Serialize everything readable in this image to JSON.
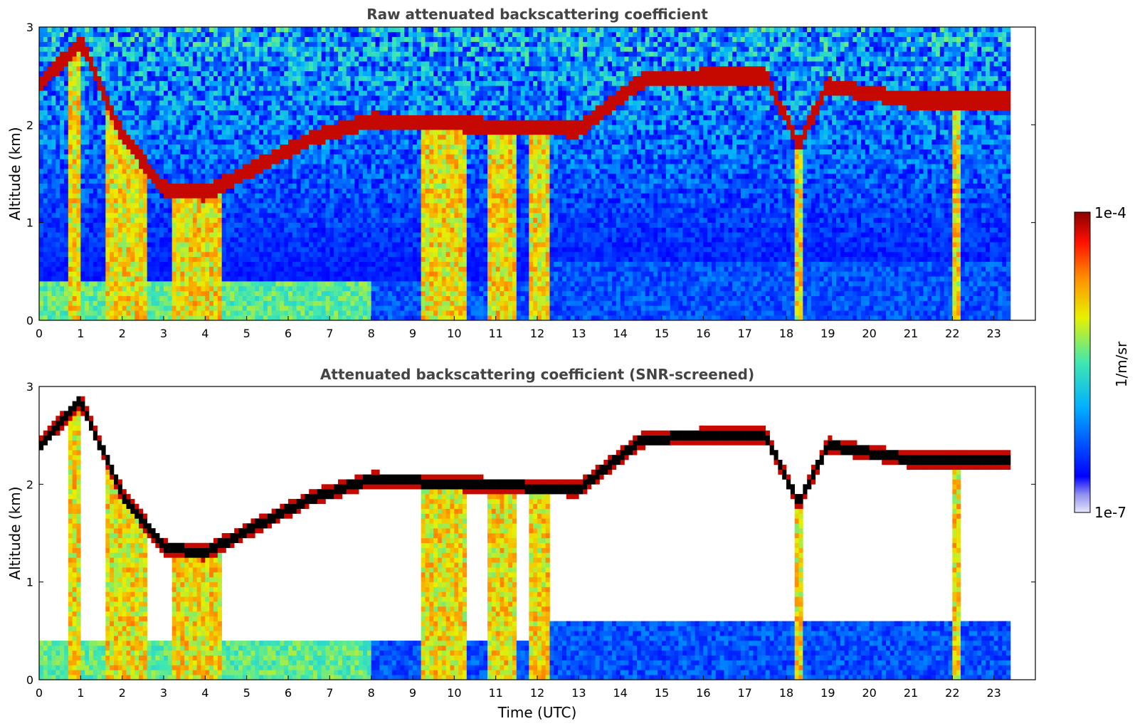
{
  "chart_data": [
    {
      "type": "heatmap",
      "title": "Raw attenuated backscattering coefficient",
      "xlabel": "",
      "ylabel": "Altitude (km)",
      "xlim": [
        0,
        24
      ],
      "ylim": [
        0,
        3
      ],
      "x_ticks": [
        "0",
        "1",
        "2",
        "3",
        "4",
        "5",
        "6",
        "7",
        "8",
        "9",
        "10",
        "11",
        "12",
        "13",
        "14",
        "15",
        "16",
        "17",
        "18",
        "19",
        "20",
        "21",
        "22",
        "23"
      ],
      "y_ticks": [
        "0",
        "1",
        "2",
        "3"
      ],
      "data_end_hour": 23.4,
      "cloud_layers": [
        {
          "t": 0.0,
          "h": 2.4
        },
        {
          "t": 1.0,
          "h": 2.85
        },
        {
          "t": 2.0,
          "h": 1.9
        },
        {
          "t": 3.0,
          "h": 1.35
        },
        {
          "t": 4.0,
          "h": 1.3
        },
        {
          "t": 6.5,
          "h": 1.85
        },
        {
          "t": 8.0,
          "h": 2.05
        },
        {
          "t": 13.0,
          "h": 1.95
        },
        {
          "t": 14.5,
          "h": 2.45
        },
        {
          "t": 16.0,
          "h": 2.5
        },
        {
          "t": 17.5,
          "h": 2.5
        },
        {
          "t": 18.3,
          "h": 1.8
        },
        {
          "t": 19.0,
          "h": 2.4
        },
        {
          "t": 21.0,
          "h": 2.25
        },
        {
          "t": 23.0,
          "h": 2.25
        }
      ]
    },
    {
      "type": "heatmap",
      "title": "Attenuated backscattering coefficient (SNR-screened)",
      "xlabel": "Time (UTC)",
      "ylabel": "Altitude (km)",
      "xlim": [
        0,
        24
      ],
      "ylim": [
        0,
        3
      ],
      "x_ticks": [
        "0",
        "1",
        "2",
        "3",
        "4",
        "5",
        "6",
        "7",
        "8",
        "9",
        "10",
        "11",
        "12",
        "13",
        "14",
        "15",
        "16",
        "17",
        "18",
        "19",
        "20",
        "21",
        "22",
        "23"
      ],
      "y_ticks": [
        "0",
        "1",
        "2",
        "3"
      ],
      "data_end_hour": 23.4
    }
  ],
  "colorbar": {
    "label": "1/m/sr",
    "max_label": "1e-4",
    "min_label": "1e-7",
    "colors": [
      "#e6e6fa",
      "#0000ff",
      "#00bfff",
      "#40e0a0",
      "#ffff00",
      "#ff8000",
      "#ff0000",
      "#8b0000"
    ]
  }
}
